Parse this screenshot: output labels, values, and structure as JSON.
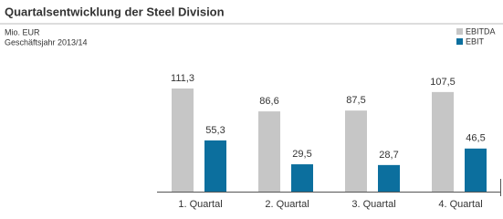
{
  "chart_data": {
    "type": "bar",
    "title": "Quartalsentwicklung der Steel Division",
    "unit_label": "Mio. EUR",
    "subtitle": "Geschäftsjahr 2013/14",
    "categories": [
      "1. Quartal",
      "2. Quartal",
      "3. Quartal",
      "4. Quartal"
    ],
    "series": [
      {
        "name": "EBITDA",
        "color": "#c6c6c6",
        "label_color": "#b0b0b0",
        "values": [
          111.3,
          86.6,
          87.5,
          107.5
        ],
        "value_labels": [
          "111,3",
          "86,6",
          "87,5",
          "107,5"
        ]
      },
      {
        "name": "EBIT",
        "color": "#0c6f9e",
        "label_color": "#0c6f9e",
        "values": [
          55.3,
          29.5,
          28.7,
          46.5
        ],
        "value_labels": [
          "55,3",
          "29,5",
          "28,7",
          "46,5"
        ]
      }
    ],
    "legend": "top-right"
  }
}
